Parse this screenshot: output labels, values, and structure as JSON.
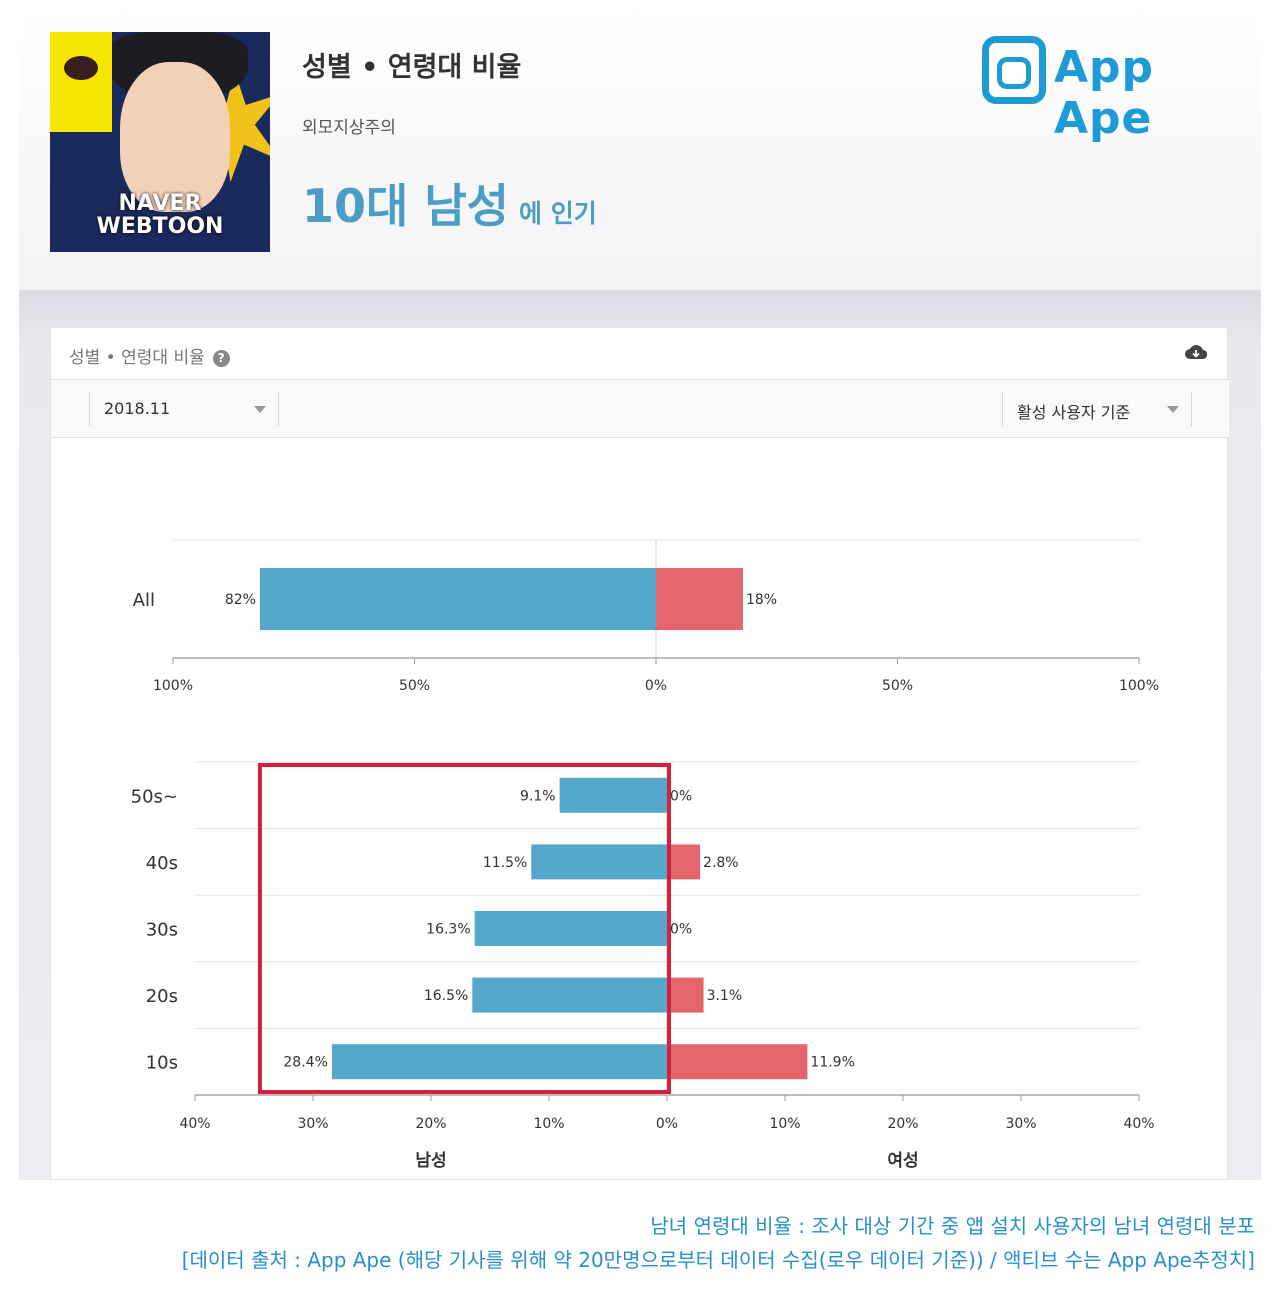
{
  "header": {
    "thumbnail_brand_line1": "NAVER",
    "thumbnail_brand_line2": "WEBTOON",
    "title": "성별 • 연령대 비율",
    "subtitle": "외모지상주의",
    "popular_highlight": "10대 남성",
    "popular_suffix": "에 인기",
    "logo_text": "App Ape"
  },
  "panel": {
    "title": "성별 • 연령대 비율",
    "help_icon": "question-icon",
    "download_icon": "cloud-download-icon",
    "period_select": "2018.11",
    "basis_select": "활성 사용자 기준"
  },
  "chart_data": [
    {
      "type": "bar",
      "orientation": "horizontal-diverging",
      "categories": [
        "All"
      ],
      "series": [
        {
          "name": "남성",
          "values": [
            82
          ],
          "labels": [
            "82%"
          ],
          "color": "#56a8cb"
        },
        {
          "name": "여성",
          "values": [
            18
          ],
          "labels": [
            "18%"
          ],
          "color": "#e4666a"
        }
      ],
      "xlim": [
        -100,
        100
      ],
      "xticks": [
        "100%",
        "50%",
        "0%",
        "50%",
        "100%"
      ]
    },
    {
      "type": "bar",
      "orientation": "horizontal-diverging",
      "categories": [
        "50s~",
        "40s",
        "30s",
        "20s",
        "10s"
      ],
      "series": [
        {
          "name": "남성",
          "values": [
            9.1,
            11.5,
            16.3,
            16.5,
            28.4
          ],
          "labels": [
            "9.1%",
            "11.5%",
            "16.3%",
            "16.5%",
            "28.4%"
          ],
          "color": "#56a8cb"
        },
        {
          "name": "여성",
          "values": [
            0,
            2.8,
            0,
            3.1,
            11.9
          ],
          "labels": [
            "0%",
            "2.8%",
            "0%",
            "3.1%",
            "11.9%"
          ],
          "color": "#e4666a"
        }
      ],
      "xlim": [
        -40,
        40
      ],
      "xticks": [
        "40%",
        "30%",
        "20%",
        "10%",
        "0%",
        "10%",
        "20%",
        "30%",
        "40%"
      ],
      "xlabel_left": "남성",
      "xlabel_right": "여성",
      "highlight_box": "male",
      "highlight_color": "#d4213d"
    }
  ],
  "caption": {
    "line1": "남녀 연령대 비율 : 조사 대상 기간 중 앱 설치 사용자의 남녀 연령대 분포",
    "line2": "[데이터 출처 : App Ape (해당 기사를 위해 약 20만명으로부터 데이터 수집(로우 데이터 기준)) / 액티브 수는 App Ape추정치]"
  }
}
